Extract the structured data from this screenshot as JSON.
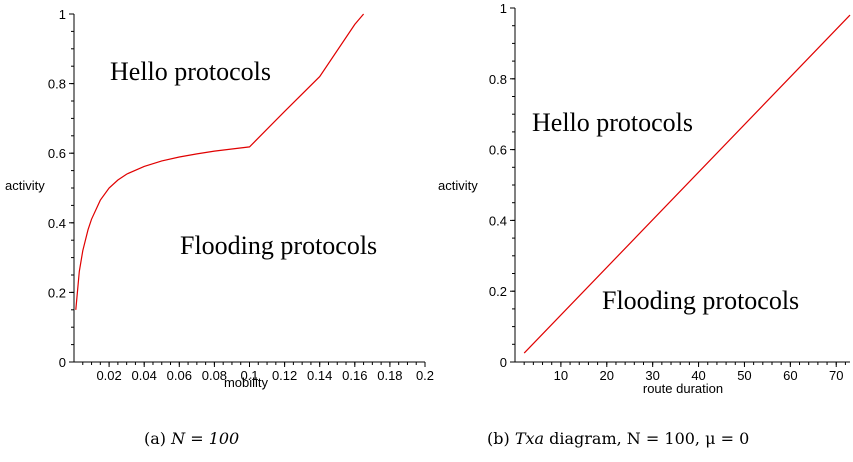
{
  "chart_data": [
    {
      "type": "line",
      "xlabel": "mobility",
      "ylabel": "activity",
      "xlim": [
        0,
        0.2
      ],
      "ylim": [
        0,
        1
      ],
      "xticks": [
        "0.02",
        "0.04",
        "0.06",
        "0.08",
        "0.1",
        "0.12",
        "0.14",
        "0.16",
        "0.18",
        "0.2"
      ],
      "yticks": [
        "0",
        "0.2",
        "0.4",
        "0.6",
        "0.8",
        "1"
      ],
      "series": [
        {
          "color": "#e00000",
          "x": [
            0.001,
            0.003,
            0.005,
            0.008,
            0.01,
            0.015,
            0.02,
            0.025,
            0.03,
            0.04,
            0.05,
            0.06,
            0.07,
            0.08,
            0.09,
            0.1,
            0.12,
            0.14,
            0.16,
            0.165
          ],
          "y": [
            0.15,
            0.26,
            0.32,
            0.38,
            0.41,
            0.465,
            0.5,
            0.523,
            0.54,
            0.562,
            0.578,
            0.589,
            0.598,
            0.606,
            0.612,
            0.618,
            0.72,
            0.82,
            0.97,
            1.0
          ]
        }
      ],
      "regions": [
        {
          "text": "Hello protocols"
        },
        {
          "text": "Flooding protocols"
        }
      ],
      "caption": {
        "prefix": "(a) ",
        "math": "N = 100"
      }
    },
    {
      "type": "line",
      "xlabel": "route duration",
      "ylabel": "activity",
      "xlim": [
        0,
        73
      ],
      "ylim": [
        0,
        1
      ],
      "xticks": [
        "10",
        "20",
        "30",
        "40",
        "50",
        "60",
        "70"
      ],
      "yticks": [
        "0",
        "0.2",
        "0.4",
        "0.6",
        "0.8",
        "1"
      ],
      "series": [
        {
          "color": "#e00000",
          "x": [
            2,
            73
          ],
          "y": [
            0.025,
            0.98
          ]
        }
      ],
      "regions": [
        {
          "text": "Hello protocols"
        },
        {
          "text": "Flooding protocols"
        }
      ],
      "caption": {
        "prefix": "(b) ",
        "math": "Txa",
        "suffix": " diagram, N = 100, μ = 0"
      }
    }
  ]
}
